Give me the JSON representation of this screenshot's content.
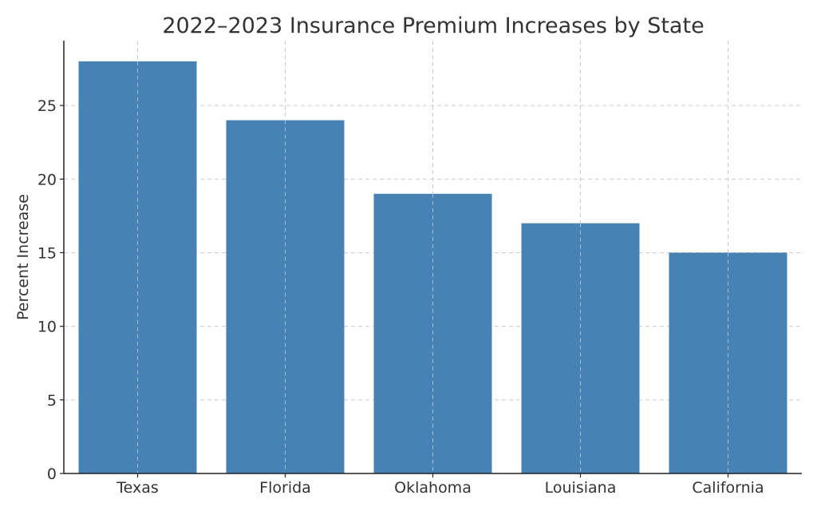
{
  "chart_data": {
    "type": "bar",
    "title": "2022–2023 Insurance Premium Increases by State",
    "xlabel": "",
    "ylabel": "Percent Increase",
    "categories": [
      "Texas",
      "Florida",
      "Oklahoma",
      "Louisiana",
      "California"
    ],
    "values": [
      28,
      24,
      19,
      17,
      15
    ],
    "ylim": [
      0,
      29.4
    ],
    "yticks": [
      0,
      5,
      10,
      15,
      20,
      25
    ],
    "grid": true,
    "bar_color": "#4682b4"
  }
}
